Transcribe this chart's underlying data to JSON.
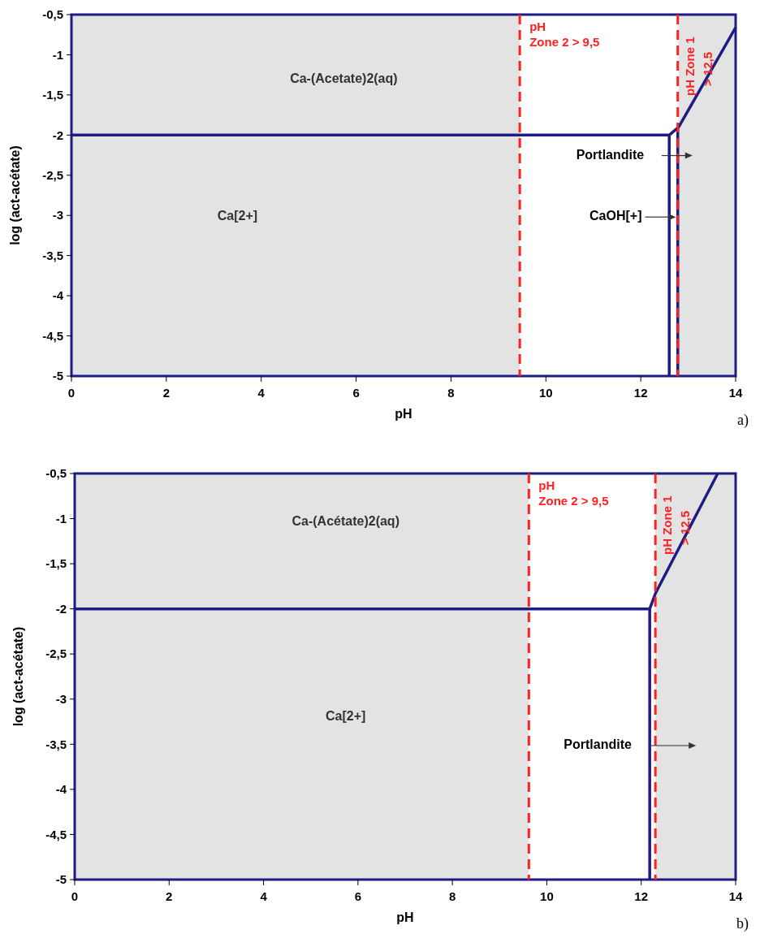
{
  "chart_data": [
    {
      "type": "line",
      "xlabel": "pH",
      "ylabel": "log (act-acétate)",
      "xlim": [
        0,
        14
      ],
      "ylim": [
        -5,
        -0.5
      ],
      "xticks": [
        0,
        2,
        4,
        6,
        8,
        10,
        12,
        14
      ],
      "yticks": [
        {
          "value": -5,
          "label": "-5"
        },
        {
          "value": -4.5,
          "label": "-4,5"
        },
        {
          "value": -4,
          "label": "-4"
        },
        {
          "value": -3.5,
          "label": "-3,5"
        },
        {
          "value": -3,
          "label": "-3"
        },
        {
          "value": -2.5,
          "label": "-2,5"
        },
        {
          "value": -2,
          "label": "-2"
        },
        {
          "value": -1.5,
          "label": "-1,5"
        },
        {
          "value": -1,
          "label": "-1"
        },
        {
          "value": -0.5,
          "label": "-0,5"
        }
      ],
      "series": [
        {
          "color": "#1c1c84",
          "x": [
            0,
            12.6,
            12.8,
            14
          ],
          "values": [
            -2,
            -2,
            -1.9,
            -0.66
          ]
        },
        {
          "color": "#1c1c84",
          "x": [
            12.6,
            12.6
          ],
          "values": [
            -2,
            -5
          ]
        },
        {
          "color": "#1c1c84",
          "x": [
            12.78,
            12.78
          ],
          "values": [
            -1.92,
            -5
          ]
        }
      ],
      "bands": [
        {
          "axis": "x",
          "from": 0,
          "to": 9.45,
          "color": "#e3e3e3"
        },
        {
          "axis": "x",
          "from": 12.8,
          "to": 14,
          "color": "#e3e3e3"
        }
      ],
      "ref_lines": [
        {
          "axis": "x",
          "value": 9.45,
          "label": "pH\nZone 2 > 9,5",
          "color": "#ff2020",
          "line_style": "dashed"
        },
        {
          "axis": "x",
          "value": 12.78,
          "label": "pH Zone 1\n> 12,5",
          "color": "#ff2020",
          "line_style": "dashed"
        }
      ],
      "annotations": [
        "Ca-(Acetate)2(aq)",
        "Ca[2+]",
        "Portlandite",
        "CaOH[+]",
        "a)"
      ],
      "grid": false
    },
    {
      "type": "line",
      "xlabel": "pH",
      "ylabel": "log (act-acétate)",
      "xlim": [
        0,
        14
      ],
      "ylim": [
        -5,
        -0.5
      ],
      "xticks": [
        0,
        2,
        4,
        6,
        8,
        10,
        12,
        14
      ],
      "yticks": [
        {
          "value": -5,
          "label": "-5"
        },
        {
          "value": -4.5,
          "label": "-4,5"
        },
        {
          "value": -4,
          "label": "-4"
        },
        {
          "value": -3.5,
          "label": "-3,5"
        },
        {
          "value": -3,
          "label": "-3"
        },
        {
          "value": -2.5,
          "label": "-2,5"
        },
        {
          "value": -2,
          "label": "-2"
        },
        {
          "value": -1.5,
          "label": "-1,5"
        },
        {
          "value": -1,
          "label": "-1"
        },
        {
          "value": -0.5,
          "label": "-0,5"
        }
      ],
      "series": [
        {
          "color": "#1c1c84",
          "x": [
            0,
            12.18,
            12.3,
            13.62
          ],
          "values": [
            -2,
            -2,
            -1.83,
            -0.5
          ]
        },
        {
          "color": "#1c1c84",
          "x": [
            12.18,
            12.18
          ],
          "values": [
            -2,
            -5
          ]
        }
      ],
      "bands": [
        {
          "axis": "x",
          "from": 0,
          "to": 9.62,
          "color": "#e3e3e3"
        },
        {
          "axis": "x",
          "from": 12.3,
          "to": 14,
          "color": "#e3e3e3"
        }
      ],
      "ref_lines": [
        {
          "axis": "x",
          "value": 9.62,
          "label": "pH\nZone 2 > 9,5",
          "color": "#ff2020",
          "line_style": "dashed"
        },
        {
          "axis": "x",
          "value": 12.3,
          "label": "pH Zone 1\n> 12,5",
          "color": "#ff2020",
          "line_style": "dashed"
        }
      ],
      "annotations": [
        "Ca-(Acétate)2(aq)",
        "Ca[2+]",
        "Portlandite",
        "b)"
      ],
      "grid": false
    }
  ]
}
